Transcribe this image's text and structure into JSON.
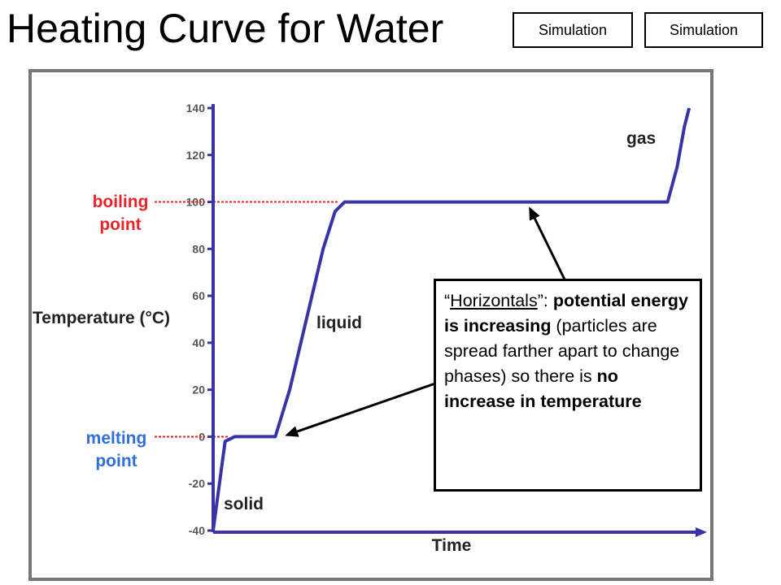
{
  "page": {
    "title": "Heating Curve for Water",
    "buttons": [
      "Simulation",
      "Simulation"
    ]
  },
  "callout": {
    "quote_open": "“",
    "term": "Horizontals",
    "quote_close": "”",
    "sep": ": ",
    "bold1": "potential energy is increasing",
    "normal1": " (particles are spread farther apart to change phases) so there is ",
    "bold2": "no increase in temperature"
  },
  "chart_data": {
    "type": "line",
    "title": "",
    "xlabel": "Time",
    "ylabel": "Temperature (°C)",
    "ylim": [
      -40,
      140
    ],
    "yticks": [
      140,
      120,
      100,
      80,
      60,
      40,
      20,
      0,
      -20,
      -40
    ],
    "series": [
      {
        "values": [
          {
            "x": 0.0,
            "y": -40
          },
          {
            "x": 0.025,
            "y": -2
          },
          {
            "x": 0.045,
            "y": 0
          },
          {
            "x": 0.13,
            "y": 0
          },
          {
            "x": 0.16,
            "y": 20
          },
          {
            "x": 0.23,
            "y": 80
          },
          {
            "x": 0.255,
            "y": 96
          },
          {
            "x": 0.275,
            "y": 100
          },
          {
            "x": 0.95,
            "y": 100
          },
          {
            "x": 0.97,
            "y": 115
          },
          {
            "x": 0.985,
            "y": 132
          },
          {
            "x": 0.995,
            "y": 140
          }
        ]
      }
    ],
    "annotations": [
      {
        "text": "boiling point",
        "value": 100,
        "color": "#e8232a"
      },
      {
        "text": "melting point",
        "value": 0,
        "color": "#2f6fd8"
      },
      {
        "text": "gas"
      },
      {
        "text": "liquid"
      },
      {
        "text": "solid"
      }
    ],
    "colors": {
      "curve": "#3a33a6",
      "axis": "#3a33a6",
      "boiling": "#e8232a",
      "melting": "#2f6fd8",
      "text": "#222222"
    }
  }
}
